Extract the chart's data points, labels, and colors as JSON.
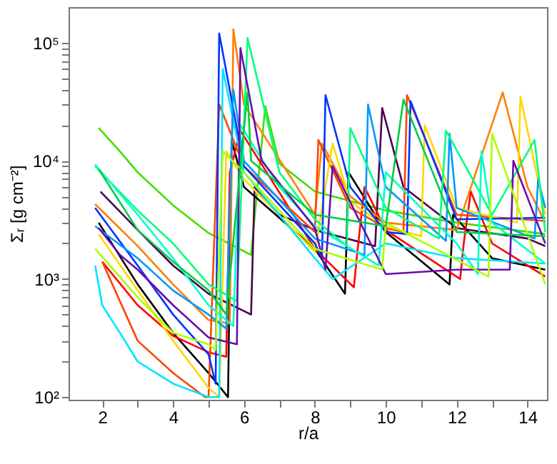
{
  "chart_data": {
    "type": "line",
    "xlabel": "r/a",
    "ylabel": "Σᵣ [g cm⁻²]",
    "log": "y",
    "grid": false,
    "legend": false,
    "marker": "none",
    "line_style": "solid",
    "xlim": [
      1.05,
      14.55
    ],
    "ylim": [
      95,
      200000
    ],
    "xticks": [
      2,
      {
        "value": 3,
        "label": null
      },
      4,
      {
        "value": 5,
        "label": null
      },
      6,
      {
        "value": 7,
        "label": null
      },
      8,
      {
        "value": 9,
        "label": null
      },
      10,
      {
        "value": 11,
        "label": null
      },
      12,
      {
        "value": 13,
        "label": null
      },
      14
    ],
    "yticks": [
      {
        "value": 100,
        "label": "10²"
      },
      {
        "value": 200,
        "label": null
      },
      {
        "value": 300,
        "label": null
      },
      {
        "value": 400,
        "label": null
      },
      {
        "value": 500,
        "label": null
      },
      {
        "value": 600,
        "label": null
      },
      {
        "value": 700,
        "label": null
      },
      {
        "value": 800,
        "label": null
      },
      {
        "value": 900,
        "label": null
      },
      {
        "value": 1000,
        "label": "10³"
      },
      {
        "value": 2000,
        "label": null
      },
      {
        "value": 3000,
        "label": null
      },
      {
        "value": 4000,
        "label": null
      },
      {
        "value": 5000,
        "label": null
      },
      {
        "value": 6000,
        "label": null
      },
      {
        "value": 7000,
        "label": null
      },
      {
        "value": 8000,
        "label": null
      },
      {
        "value": 9000,
        "label": null
      },
      {
        "value": 10000,
        "label": "10⁴"
      },
      {
        "value": 20000,
        "label": null
      },
      {
        "value": 30000,
        "label": null
      },
      {
        "value": 40000,
        "label": null
      },
      {
        "value": 50000,
        "label": null
      },
      {
        "value": 60000,
        "label": null
      },
      {
        "value": 70000,
        "label": null
      },
      {
        "value": 80000,
        "label": null
      },
      {
        "value": 90000,
        "label": null
      },
      {
        "value": 100000,
        "label": "10⁵"
      }
    ],
    "series": [
      {
        "color": "#44dd00",
        "x": [
          1.9,
          2.5,
          3,
          4,
          5,
          6.2,
          6.6,
          7,
          8,
          10,
          12,
          14.5
        ],
        "values": [
          19000,
          12000,
          8000,
          4200,
          2450,
          1600,
          29000,
          9500,
          5500,
          3800,
          3000,
          2400
        ]
      },
      {
        "color": "#4b0050",
        "x": [
          1.95,
          3,
          4,
          5,
          6.2,
          6.3,
          7,
          8,
          9.7,
          9.9,
          10.5,
          12,
          14,
          14.5
        ],
        "values": [
          5500,
          2600,
          1300,
          750,
          500,
          6000,
          3500,
          2600,
          1900,
          28000,
          6000,
          2700,
          2200,
          1900
        ]
      },
      {
        "color": "#000000",
        "x": [
          1.9,
          3,
          4,
          5,
          5.55,
          5.65,
          6,
          8,
          8.85,
          8.95,
          10,
          11.8,
          11.9,
          13,
          14.5
        ],
        "values": [
          3000,
          900,
          350,
          160,
          100,
          15000,
          6000,
          1800,
          750,
          8000,
          2500,
          900,
          3500,
          1500,
          1200
        ]
      },
      {
        "color": "#ff0000",
        "x": [
          2,
          3,
          4,
          5,
          5.5,
          5.6,
          5.9,
          8,
          9.1,
          9.2,
          9.4,
          10,
          12.1,
          12.2,
          12.4,
          13,
          14.5
        ],
        "values": [
          1400,
          600,
          330,
          240,
          220,
          8000,
          18000,
          1800,
          850,
          1700,
          6000,
          2600,
          1000,
          2000,
          5500,
          2000,
          1050
        ]
      },
      {
        "color": "#ff7f00",
        "x": [
          1.8,
          3,
          4,
          5,
          5.6,
          5.7,
          6,
          8,
          8.2,
          9,
          10,
          12,
          13.3,
          14,
          14.5
        ],
        "values": [
          4300,
          1900,
          900,
          450,
          420,
          130000,
          30000,
          3500,
          14000,
          5000,
          3000,
          2600,
          38000,
          6000,
          3000
        ]
      },
      {
        "color": "#ff4500",
        "x": [
          2,
          3,
          4,
          4.9,
          5.0,
          5.3,
          6,
          8,
          8.1,
          9,
          10,
          10.5,
          10.6,
          12,
          14.5
        ],
        "values": [
          1400,
          300,
          160,
          100,
          100,
          30000,
          9000,
          2500,
          15000,
          4000,
          2700,
          2500,
          36000,
          3500,
          3100
        ]
      },
      {
        "color": "#ffd700",
        "x": [
          1.9,
          3,
          4,
          5,
          5.3,
          5.5,
          6,
          8,
          8.5,
          9,
          10,
          11,
          11.1,
          12,
          13.7,
          13.8,
          14.5
        ],
        "values": [
          2400,
          800,
          300,
          120,
          100,
          12000,
          7000,
          1700,
          14000,
          4500,
          2800,
          2300,
          20000,
          4000,
          3000,
          35000,
          3500
        ]
      },
      {
        "color": "#00e5ff",
        "x": [
          1.8,
          2,
          2.5,
          3,
          4,
          5,
          5.3,
          5.4,
          6,
          8,
          8.5,
          10,
          12,
          14.5
        ],
        "values": [
          1300,
          600,
          350,
          200,
          130,
          100,
          100,
          60000,
          8000,
          1500,
          1000,
          2000,
          1500,
          1350
        ]
      },
      {
        "color": "#0033ff",
        "x": [
          1.8,
          3,
          4,
          5,
          5.2,
          5.3,
          6,
          8,
          8.2,
          8.3,
          9,
          10,
          10.6,
          10.7,
          12,
          14.5
        ],
        "values": [
          4000,
          1300,
          500,
          230,
          130,
          120000,
          9000,
          2000,
          1500,
          36000,
          6000,
          2500,
          2400,
          32000,
          3200,
          3300
        ]
      },
      {
        "color": "#0099ff",
        "x": [
          1.8,
          3,
          4,
          5,
          5.5,
          5.7,
          6,
          8,
          9.4,
          9.5,
          10,
          11.7,
          11.8,
          12,
          14.2,
          14.3,
          14.5
        ],
        "values": [
          2800,
          1500,
          800,
          500,
          380,
          40000,
          10000,
          2200,
          1600,
          30000,
          6000,
          2100,
          17000,
          4000,
          2200,
          7000,
          4000
        ]
      },
      {
        "color": "#00ff80",
        "x": [
          1.8,
          3,
          4,
          5,
          5.8,
          6.1,
          7,
          8,
          8.9,
          9.0,
          10,
          11.5,
          11.7,
          13,
          14.2,
          14.5
        ],
        "values": [
          9000,
          3800,
          2000,
          900,
          650,
          110000,
          8000,
          3200,
          1900,
          19000,
          4000,
          2200,
          18000,
          3500,
          15000,
          2500
        ]
      },
      {
        "color": "#00ffcc",
        "x": [
          1.8,
          3,
          4,
          5,
          5.7,
          5.9,
          7,
          8,
          9.8,
          10,
          12,
          12.6,
          12.7,
          13,
          14.5
        ],
        "values": [
          9300,
          3500,
          1500,
          600,
          400,
          20000,
          6000,
          2800,
          1300,
          8000,
          2000,
          1100,
          12000,
          3000,
          1350
        ]
      },
      {
        "color": "#6a0dad",
        "x": [
          1.9,
          2.5,
          3,
          4,
          5,
          5.8,
          5.9,
          6.5,
          8,
          8.3,
          8.5,
          10,
          12,
          13.5,
          13.6,
          14.5
        ],
        "values": [
          2700,
          1600,
          1200,
          600,
          320,
          280,
          90000,
          10000,
          2700,
          1200,
          9000,
          1100,
          1200,
          1200,
          10000,
          2000
        ]
      },
      {
        "color": "#aaff00",
        "x": [
          1.8,
          3,
          4,
          5,
          5.2,
          5.4,
          6,
          8,
          9.9,
          10,
          12.9,
          13,
          14.5
        ],
        "values": [
          1800,
          700,
          350,
          280,
          250,
          12000,
          8000,
          1800,
          1200,
          3000,
          1050,
          17000,
          900
        ]
      },
      {
        "color": "#00cc44",
        "x": [
          1.9,
          3,
          4,
          5,
          5.5,
          6.1,
          6.2,
          8,
          10,
          10.5,
          12,
          14.5
        ],
        "values": [
          8500,
          2600,
          1400,
          800,
          500,
          38000,
          10000,
          3500,
          2800,
          33000,
          2500,
          2300
        ]
      }
    ]
  }
}
